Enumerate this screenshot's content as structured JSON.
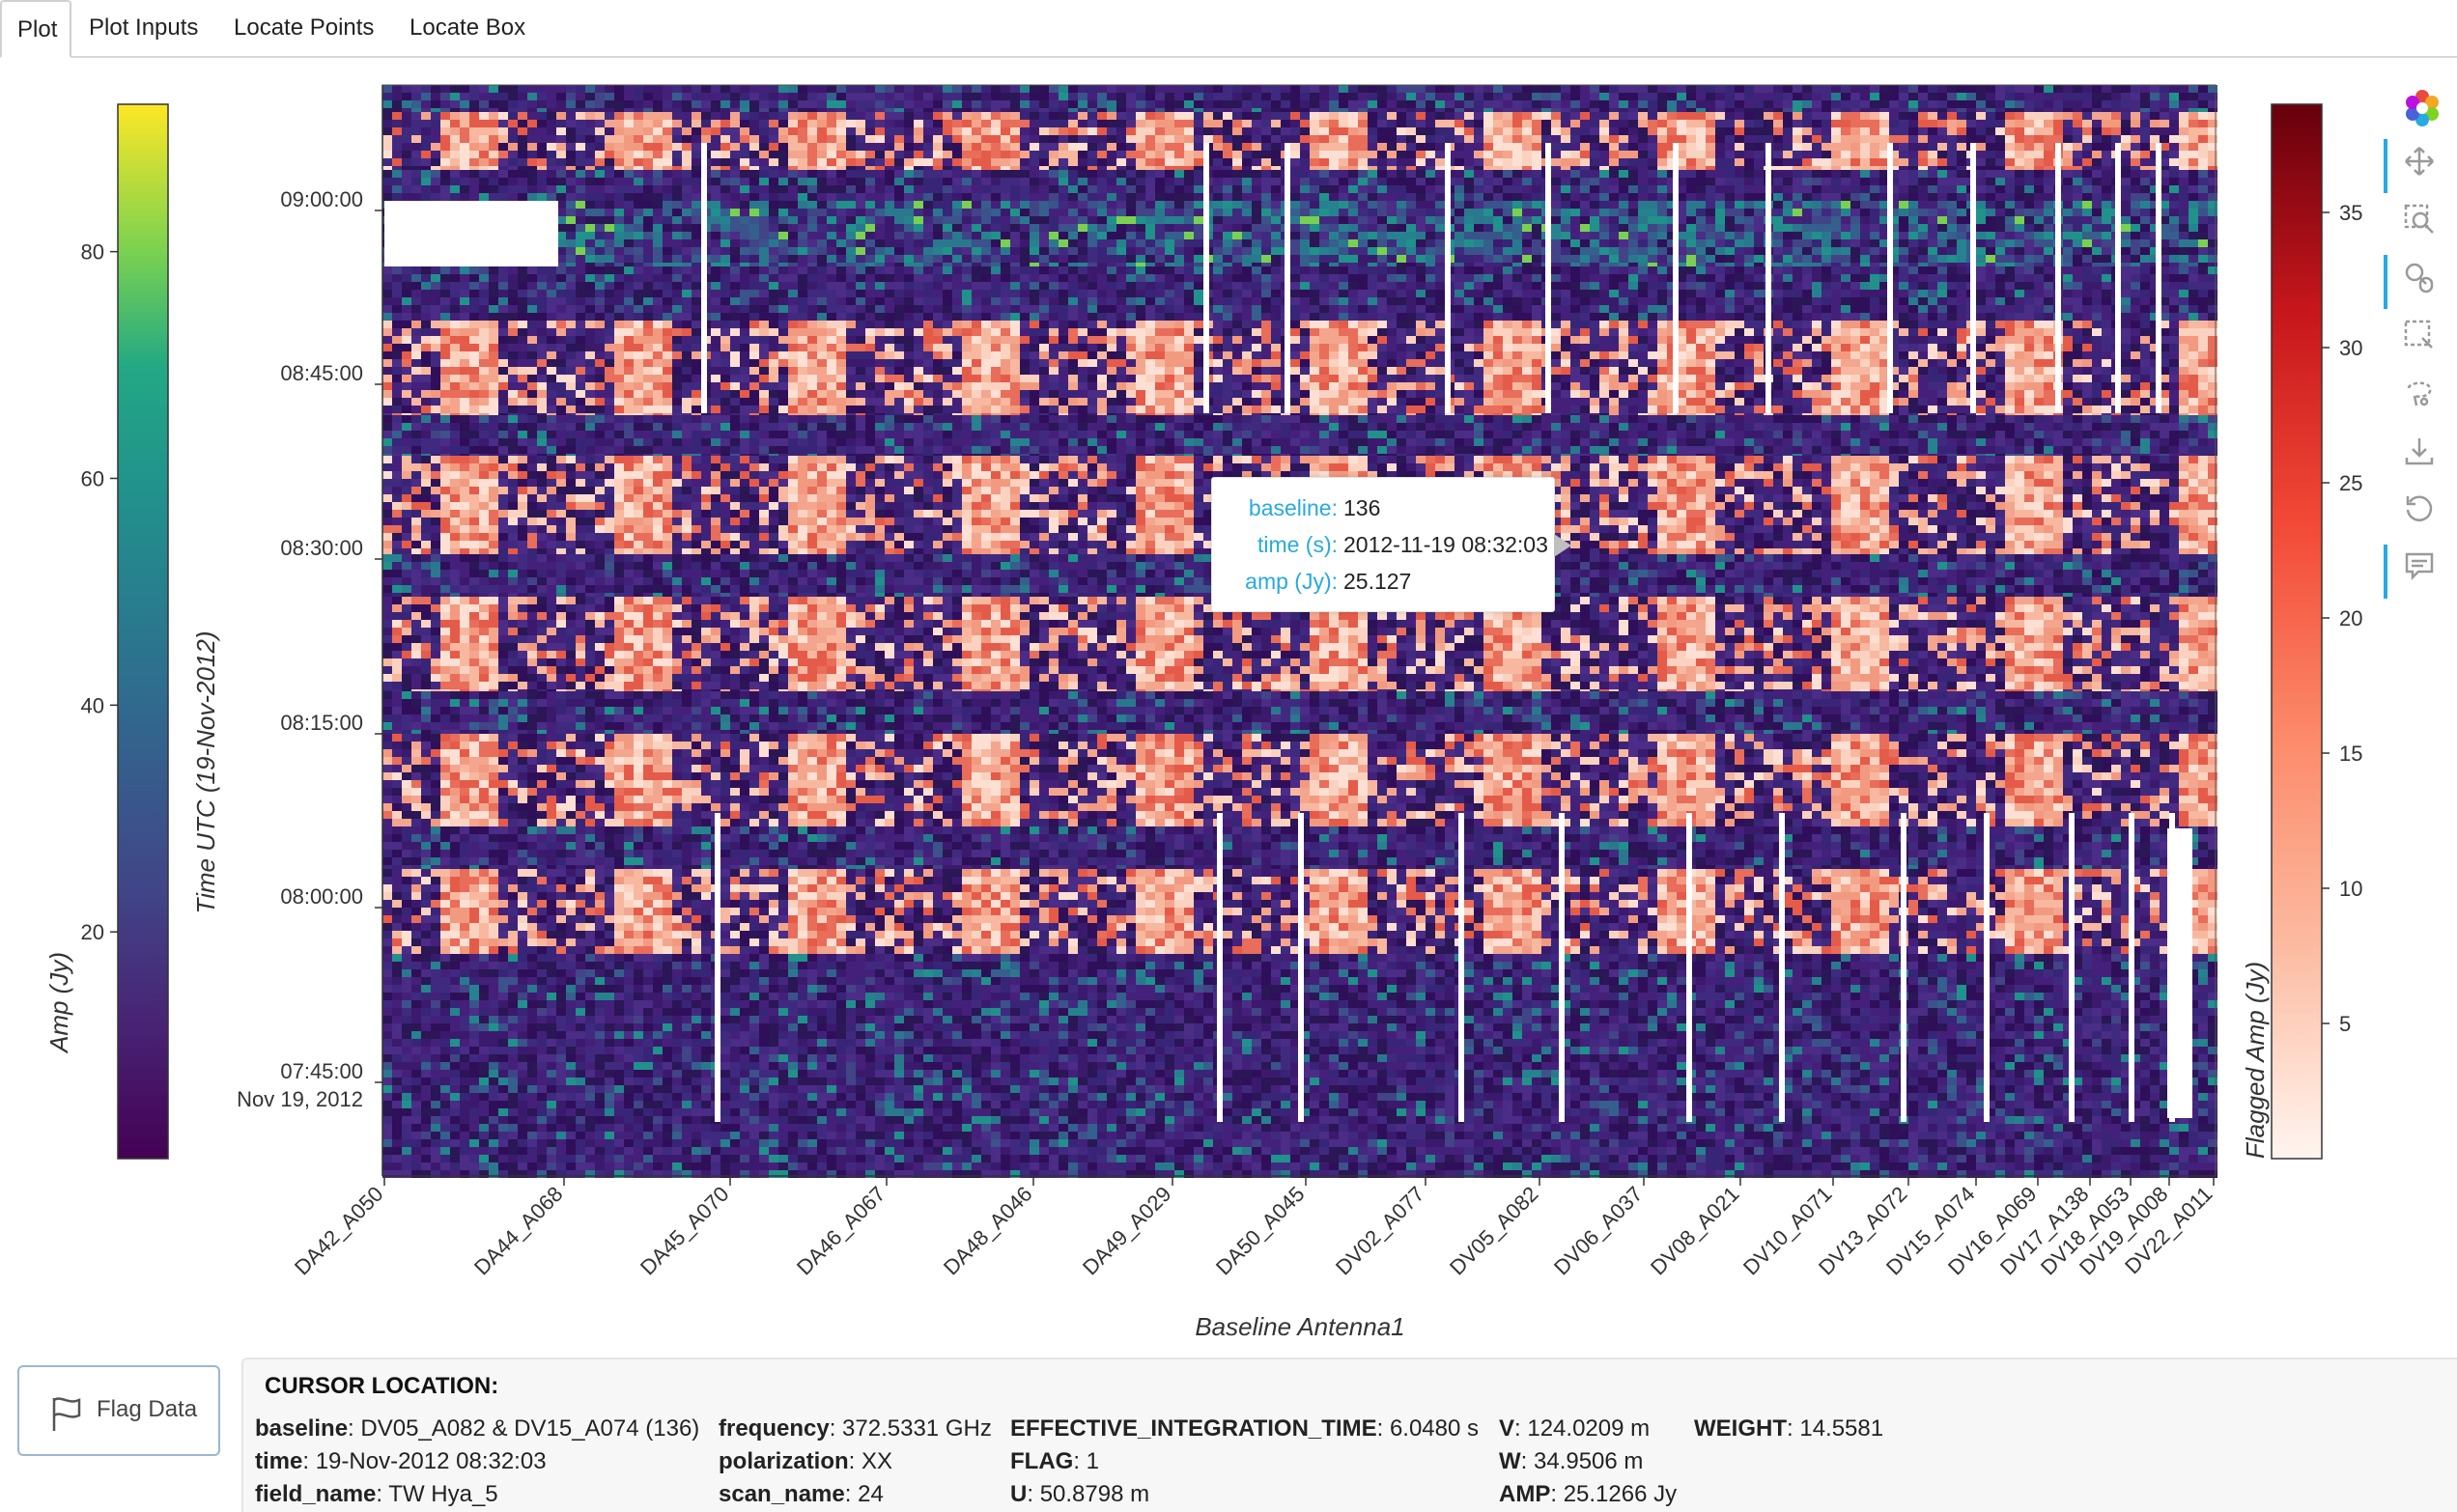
{
  "tabs": [
    {
      "label": "Plot",
      "active": true
    },
    {
      "label": "Plot Inputs",
      "active": false
    },
    {
      "label": "Locate Points",
      "active": false
    },
    {
      "label": "Locate Box",
      "active": false
    }
  ],
  "chart_data": {
    "type": "heatmap",
    "xlabel": "Baseline Antenna1",
    "ylabel": "Time UTC (19-Nov-2012)",
    "x_tick_labels": [
      "DA42_A050",
      "DA44_A068",
      "DA45_A070",
      "DA46_A067",
      "DA48_A046",
      "DA49_A029",
      "DA50_A045",
      "DV02_A077",
      "DV05_A082",
      "DV06_A037",
      "DV08_A021",
      "DV10_A071",
      "DV13_A072",
      "DV15_A074",
      "DV16_A069",
      "DV17_A138",
      "DV18_A053",
      "DV19_A008",
      "DV22_A011"
    ],
    "y_tick_labels": [
      "09:00:00",
      "08:45:00",
      "08:30:00",
      "08:15:00",
      "08:00:00",
      "07:45:00"
    ],
    "y_axis_date_label": "Nov 19, 2012",
    "colorbar_left": {
      "label": "Amp (Jy)",
      "colormap": "viridis",
      "ticks": [
        20,
        40,
        60,
        80
      ],
      "range": [
        0,
        93
      ]
    },
    "colorbar_right": {
      "label": "Flagged Amp (Jy)",
      "colormap": "reds",
      "ticks": [
        5,
        10,
        15,
        20,
        25,
        30,
        35
      ],
      "range": [
        0,
        39
      ]
    }
  },
  "tooltip": {
    "rows": [
      {
        "key": "baseline:",
        "value": "136"
      },
      {
        "key": "time (s):",
        "value": "2012-11-19 08:32:03"
      },
      {
        "key": "amp (Jy):",
        "value": "25.127"
      }
    ]
  },
  "toolbar": {
    "items": [
      "bokeh-logo",
      "pan",
      "box-zoom",
      "wheel-zoom",
      "box-select",
      "lasso-select",
      "save",
      "reset",
      "hover"
    ]
  },
  "flag_button": {
    "label": "Flag Data"
  },
  "cursor": {
    "title": "CURSOR LOCATION",
    "fields": [
      {
        "k": "baseline",
        "v": "DV05_A082 & DV15_A074 (136)"
      },
      {
        "k": "time",
        "v": "19-Nov-2012 08:32:03"
      },
      {
        "k": "field_name",
        "v": "TW Hya_5"
      },
      {
        "k": "frequency",
        "v": "372.5331 GHz"
      },
      {
        "k": "polarization",
        "v": "XX"
      },
      {
        "k": "scan_name",
        "v": "24"
      },
      {
        "k": "EFFECTIVE_INTEGRATION_TIME",
        "v": "6.0480 s"
      },
      {
        "k": "FLAG",
        "v": "1"
      },
      {
        "k": "U",
        "v": "50.8798 m"
      },
      {
        "k": "V",
        "v": "124.0209 m"
      },
      {
        "k": "W",
        "v": "34.9506 m"
      },
      {
        "k": "AMP",
        "v": "25.1266 Jy"
      },
      {
        "k": "WEIGHT",
        "v": "14.5581"
      }
    ]
  }
}
